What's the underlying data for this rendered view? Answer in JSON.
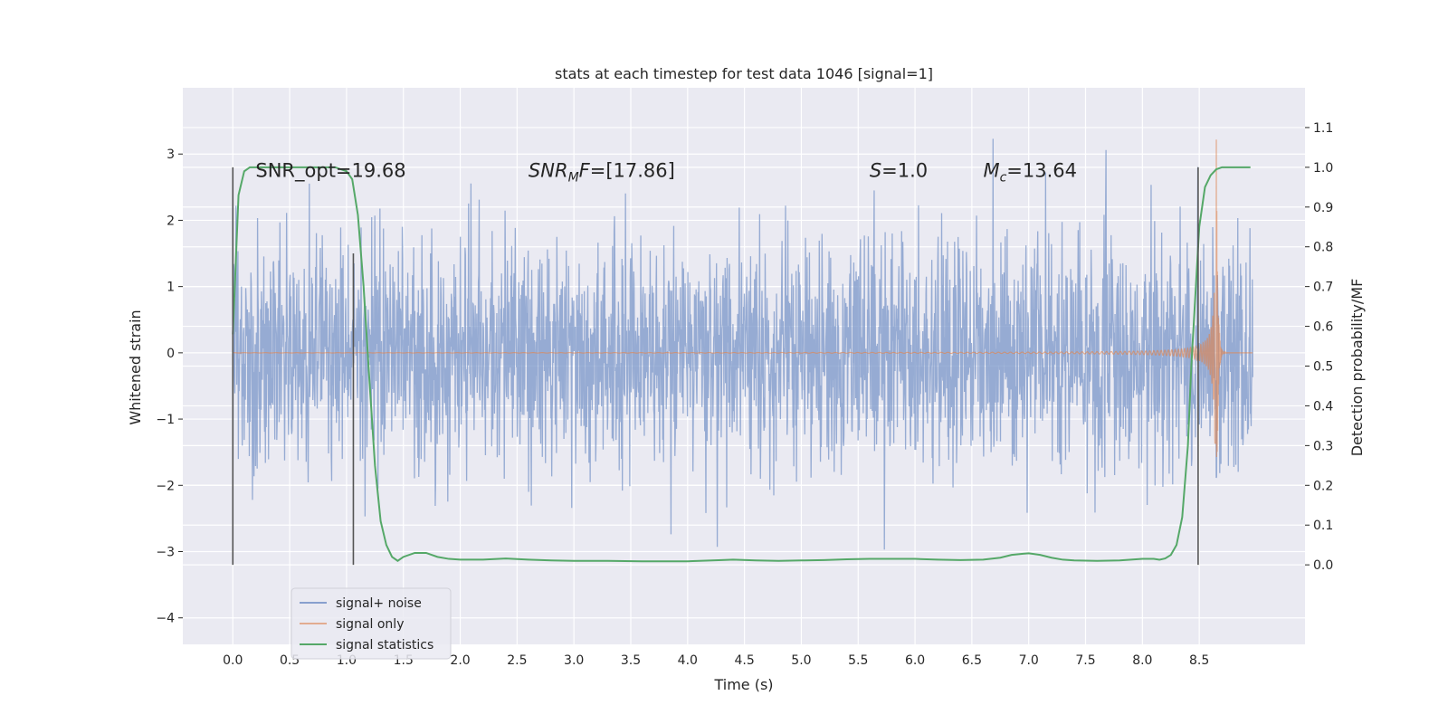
{
  "chart_data": {
    "type": "line",
    "title": "stats at each timestep for test data 1046 [signal=1]",
    "xlabel": "Time (s)",
    "ylabel_left": "Whitened strain",
    "ylabel_right": "Detection probability/MF",
    "xlim": [
      -0.44,
      9.43
    ],
    "ylim_left": [
      -4.4,
      4.0
    ],
    "ylim_right": [
      -0.2,
      1.2
    ],
    "x_ticks": [
      "0.0",
      "0.5",
      "1.0",
      "1.5",
      "2.0",
      "2.5",
      "3.0",
      "3.5",
      "4.0",
      "4.5",
      "5.0",
      "5.5",
      "6.0",
      "6.5",
      "7.0",
      "7.5",
      "8.0",
      "8.5"
    ],
    "y_left_ticks": [
      "3",
      "2",
      "1",
      "0",
      "−1",
      "−2",
      "−3",
      "−4"
    ],
    "y_right_ticks": [
      "1.1",
      "1.0",
      "0.9",
      "0.8",
      "0.7",
      "0.6",
      "0.5",
      "0.4",
      "0.3",
      "0.2",
      "0.1",
      "0.0"
    ],
    "grid": true,
    "legend_position": "lower-left",
    "annotations": [
      {
        "id": "snr-opt",
        "parts": [
          {
            "t": "SNR_opt=19.68",
            "i": false
          }
        ],
        "x": 0.2,
        "y": 2.75
      },
      {
        "id": "snr-mf",
        "parts": [
          {
            "t": "SNR",
            "i": true
          },
          {
            "t": "M",
            "i": true,
            "sub": true
          },
          {
            "t": "F",
            "i": true
          },
          {
            "t": "=[17.86]",
            "i": false
          }
        ],
        "x": 2.6,
        "y": 2.75
      },
      {
        "id": "s-value",
        "parts": [
          {
            "t": "S",
            "i": true
          },
          {
            "t": "=1.0",
            "i": false
          }
        ],
        "x": 5.6,
        "y": 2.75
      },
      {
        "id": "mc-value",
        "parts": [
          {
            "t": "M",
            "i": true
          },
          {
            "t": "c",
            "i": true,
            "sub": true
          },
          {
            "t": "=13.64",
            "i": false
          }
        ],
        "x": 6.6,
        "y": 2.75
      }
    ],
    "vlines": [
      {
        "x": 0.0,
        "ymin": -3.2,
        "ymax": 2.8
      },
      {
        "x": 1.06,
        "ymin": -3.2,
        "ymax": 1.5
      },
      {
        "x": 8.49,
        "ymin": -3.2,
        "ymax": 2.8
      }
    ],
    "series": [
      {
        "name": "signal+ noise",
        "color": "#7a95c8",
        "axis": "left",
        "kind": "noise",
        "x_range": [
          0.0,
          8.97
        ],
        "sigma": 0.85
      },
      {
        "name": "signal only",
        "color": "#dd8452",
        "axis": "left",
        "kind": "chirp",
        "x_range": [
          0.0,
          8.97
        ],
        "merger_x": 8.65,
        "peak": 3.25
      },
      {
        "name": "signal statistics",
        "color": "#55a868",
        "axis": "right",
        "x": [
          0.0,
          0.05,
          0.1,
          0.15,
          0.2,
          0.3,
          0.5,
          0.7,
          0.9,
          1.0,
          1.05,
          1.1,
          1.15,
          1.2,
          1.25,
          1.3,
          1.35,
          1.4,
          1.45,
          1.5,
          1.6,
          1.7,
          1.8,
          1.9,
          2.0,
          2.2,
          2.4,
          2.6,
          2.8,
          3.0,
          3.3,
          3.6,
          4.0,
          4.3,
          4.4,
          4.6,
          4.8,
          5.0,
          5.2,
          5.4,
          5.6,
          5.8,
          6.0,
          6.2,
          6.4,
          6.6,
          6.75,
          6.85,
          6.95,
          7.0,
          7.1,
          7.2,
          7.3,
          7.4,
          7.6,
          7.8,
          8.0,
          8.1,
          8.15,
          8.2,
          8.25,
          8.3,
          8.35,
          8.4,
          8.43,
          8.46,
          8.5,
          8.55,
          8.6,
          8.65,
          8.7,
          8.8,
          8.9,
          8.95
        ],
        "values": [
          0.58,
          0.93,
          0.99,
          1.0,
          1.0,
          1.0,
          1.0,
          1.0,
          1.0,
          0.99,
          0.97,
          0.88,
          0.7,
          0.47,
          0.25,
          0.11,
          0.05,
          0.02,
          0.01,
          0.02,
          0.03,
          0.03,
          0.02,
          0.015,
          0.013,
          0.013,
          0.016,
          0.013,
          0.011,
          0.01,
          0.01,
          0.009,
          0.009,
          0.012,
          0.013,
          0.011,
          0.01,
          0.011,
          0.012,
          0.014,
          0.015,
          0.015,
          0.015,
          0.013,
          0.012,
          0.013,
          0.018,
          0.025,
          0.028,
          0.029,
          0.025,
          0.018,
          0.013,
          0.011,
          0.01,
          0.011,
          0.015,
          0.015,
          0.013,
          0.016,
          0.025,
          0.05,
          0.12,
          0.3,
          0.5,
          0.65,
          0.85,
          0.95,
          0.98,
          0.995,
          1.0,
          1.0,
          1.0,
          1.0
        ]
      }
    ]
  }
}
